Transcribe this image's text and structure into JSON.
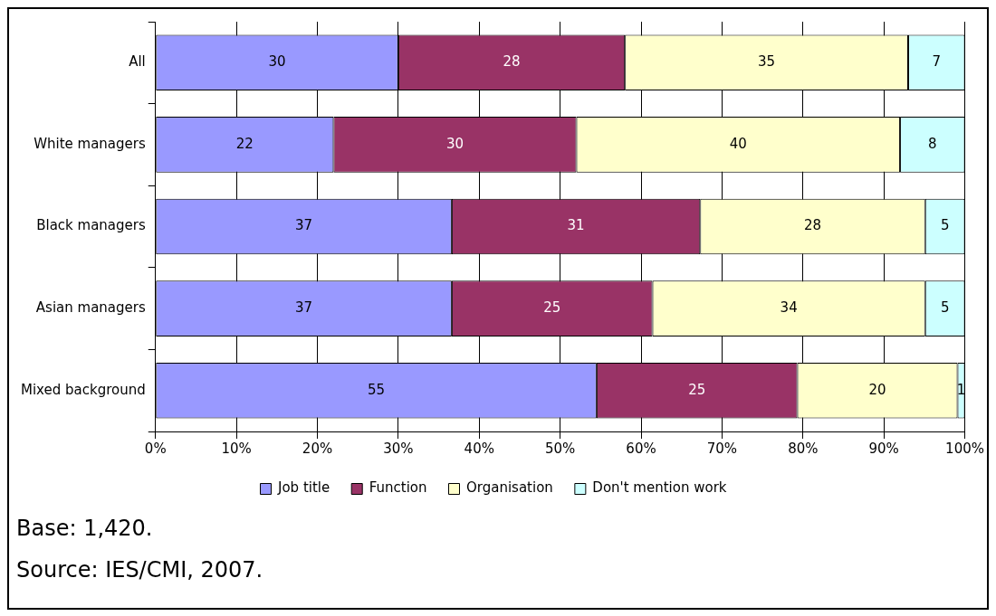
{
  "chart_data": {
    "type": "bar",
    "orientation": "horizontal",
    "stacked": true,
    "categories": [
      "All",
      "White managers",
      "Black managers",
      "Asian managers",
      "Mixed background"
    ],
    "series": [
      {
        "name": "Job title",
        "color": "#9999ff",
        "values": [
          30,
          22,
          36.6,
          36.6,
          54.5
        ],
        "value_labels": [
          "30",
          "22",
          "37",
          "37",
          "55"
        ]
      },
      {
        "name": "Function",
        "color": "#993366",
        "values": [
          28,
          30,
          30.7,
          24.8,
          24.8
        ],
        "value_labels": [
          "28",
          "30",
          "31",
          "25",
          "25"
        ]
      },
      {
        "name": "Organisation",
        "color": "#ffffcc",
        "values": [
          35,
          40,
          27.8,
          33.7,
          19.8
        ],
        "value_labels": [
          "35",
          "40",
          "28",
          "34",
          "20"
        ]
      },
      {
        "name": "Don't mention work",
        "color": "#ccffff",
        "values": [
          7,
          8,
          4.9,
          4.9,
          0.9
        ],
        "value_labels": [
          "7",
          "8",
          "5",
          "5",
          "1"
        ]
      }
    ],
    "xlim": [
      0,
      100
    ],
    "xticks": [
      {
        "value": 0,
        "label": "0%"
      },
      {
        "value": 10,
        "label": "10%"
      },
      {
        "value": 20,
        "label": "20%"
      },
      {
        "value": 30,
        "label": "30%"
      },
      {
        "value": 40,
        "label": "40%"
      },
      {
        "value": 50,
        "label": "50%"
      },
      {
        "value": 60,
        "label": "60%"
      },
      {
        "value": 70,
        "label": "70%"
      },
      {
        "value": 80,
        "label": "80%"
      },
      {
        "value": 90,
        "label": "90%"
      },
      {
        "value": 100,
        "label": "100%"
      }
    ],
    "grid": "x",
    "legend": "bottom",
    "annotations": [
      "Base: 1,420.",
      "Source: IES/CMI, 2007."
    ]
  }
}
